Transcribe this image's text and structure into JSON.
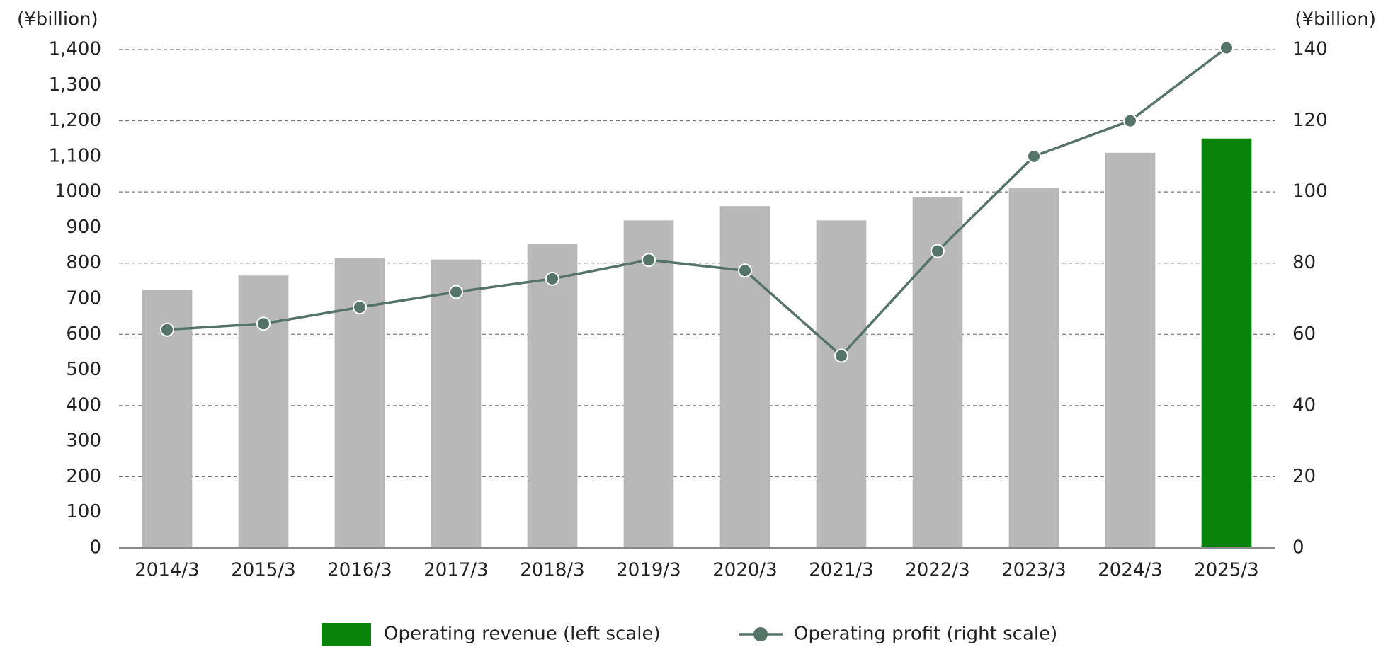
{
  "chart_data": {
    "type": "bar_line",
    "y_axis_label": "(¥billion)",
    "y2_axis_label": "(¥billion)",
    "categories": [
      "2014/3",
      "2015/3",
      "2016/3",
      "2017/3",
      "2018/3",
      "2019/3",
      "2020/3",
      "2021/3",
      "2022/3",
      "2023/3",
      "2024/3",
      "2025/3"
    ],
    "series": [
      {
        "name": "Operating revenue (left scale)",
        "type": "bar",
        "color": "#088208",
        "colors": [
          "#b8b8b8",
          "#b8b8b8",
          "#b8b8b8",
          "#b8b8b8",
          "#b8b8b8",
          "#b8b8b8",
          "#b8b8b8",
          "#b8b8b8",
          "#b8b8b8",
          "#b8b8b8",
          "#b8b8b8",
          "#088208"
        ],
        "values": [
          725,
          765,
          815,
          810,
          855,
          920,
          960,
          920,
          985,
          1010,
          1110,
          1150
        ]
      },
      {
        "name": "Operating profit (right scale)",
        "type": "line",
        "axis": "y2",
        "color": "#557468",
        "values": [
          61.3,
          63,
          67.6,
          71.9,
          75.6,
          80.9,
          77.9,
          54,
          83.4,
          110,
          120,
          140.5
        ]
      }
    ],
    "ylim": [
      0,
      1400
    ],
    "yticks": [
      0,
      100,
      200,
      300,
      400,
      500,
      600,
      700,
      800,
      900,
      1000,
      {
        "value": 1100,
        "label": "1,100"
      },
      {
        "value": 1200,
        "label": "1,200"
      },
      {
        "value": 1300,
        "label": "1,300"
      },
      {
        "value": 1400,
        "label": "1,400"
      }
    ],
    "y2lim": [
      0,
      140
    ],
    "y2ticks": [
      0,
      20,
      40,
      60,
      80,
      100,
      120,
      140
    ],
    "grid": true,
    "legend": "bottom"
  }
}
